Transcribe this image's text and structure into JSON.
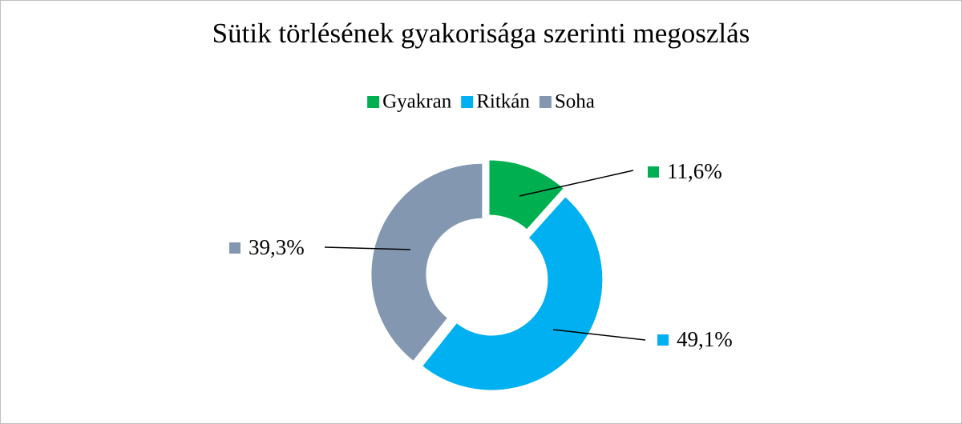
{
  "chart_data": {
    "type": "donut",
    "title": "Sütik törlésének gyakorisága szerinti megoszlás",
    "categories": [
      "Gyakran",
      "Ritkán",
      "Soha"
    ],
    "values": [
      11.6,
      49.1,
      39.3
    ],
    "value_labels": [
      "11,6%",
      "49,1%",
      "39,3%"
    ],
    "colors": [
      "#00b050",
      "#00b0f0",
      "#8497b0"
    ],
    "legend": "top"
  }
}
